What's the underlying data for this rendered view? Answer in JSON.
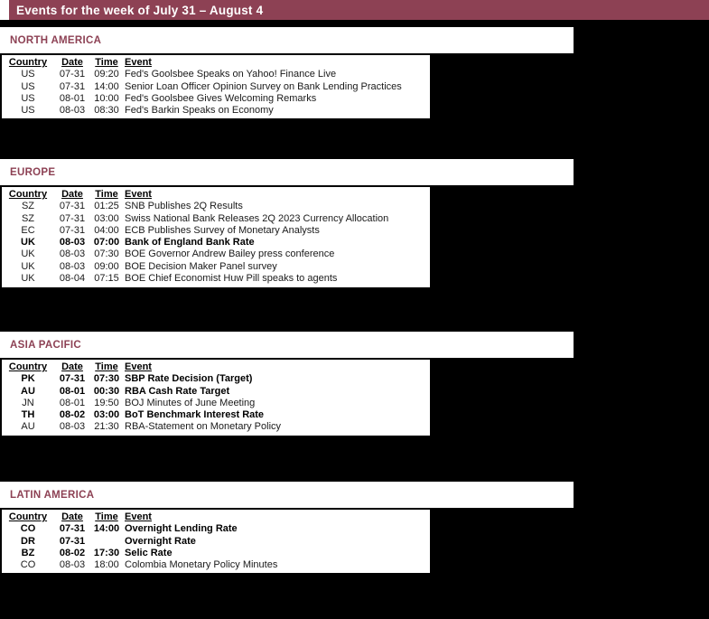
{
  "title_bar": {
    "text": "Events for the week of July 31 – August 4"
  },
  "colors": {
    "accent_maroon": "#8D4154",
    "background": "#000000",
    "panel_white": "#FFFFFF",
    "text": "#1A1A1A"
  },
  "table_headers": {
    "country": "Country",
    "date": "Date",
    "time": "Time",
    "event": "Event"
  },
  "sections": [
    {
      "name": "NORTH AMERICA",
      "rows": [
        {
          "country": "US",
          "date": "07-31",
          "time": "09:20",
          "event": "Fed's Goolsbee Speaks on Yahoo! Finance Live",
          "bold": false
        },
        {
          "country": "US",
          "date": "07-31",
          "time": "14:00",
          "event": "Senior Loan Officer Opinion Survey on Bank Lending Practices",
          "bold": false
        },
        {
          "country": "US",
          "date": "08-01",
          "time": "10:00",
          "event": "Fed's Goolsbee Gives Welcoming Remarks",
          "bold": false
        },
        {
          "country": "US",
          "date": "08-03",
          "time": "08:30",
          "event": "Fed's Barkin Speaks on Economy",
          "bold": false
        }
      ]
    },
    {
      "name": "EUROPE",
      "rows": [
        {
          "country": "SZ",
          "date": "07-31",
          "time": "01:25",
          "event": "SNB Publishes 2Q Results",
          "bold": false
        },
        {
          "country": "SZ",
          "date": "07-31",
          "time": "03:00",
          "event": "Swiss National Bank Releases 2Q 2023 Currency Allocation",
          "bold": false
        },
        {
          "country": "EC",
          "date": "07-31",
          "time": "04:00",
          "event": "ECB Publishes Survey of Monetary Analysts",
          "bold": false
        },
        {
          "country": "UK",
          "date": "08-03",
          "time": "07:00",
          "event": "Bank of England Bank Rate",
          "bold": true
        },
        {
          "country": "UK",
          "date": "08-03",
          "time": "07:30",
          "event": "BOE Governor Andrew Bailey press conference",
          "bold": false
        },
        {
          "country": "UK",
          "date": "08-03",
          "time": "09:00",
          "event": "BOE Decision Maker Panel survey",
          "bold": false
        },
        {
          "country": "UK",
          "date": "08-04",
          "time": "07:15",
          "event": "BOE Chief Economist Huw Pill speaks to agents",
          "bold": false
        }
      ]
    },
    {
      "name": "ASIA PACIFIC",
      "rows": [
        {
          "country": "PK",
          "date": "07-31",
          "time": "07:30",
          "event": "SBP Rate Decision (Target)",
          "bold": true
        },
        {
          "country": "AU",
          "date": "08-01",
          "time": "00:30",
          "event": "RBA Cash Rate Target",
          "bold": true
        },
        {
          "country": "JN",
          "date": "08-01",
          "time": "19:50",
          "event": "BOJ Minutes of June Meeting",
          "bold": false
        },
        {
          "country": "TH",
          "date": "08-02",
          "time": "03:00",
          "event": "BoT Benchmark Interest Rate",
          "bold": true
        },
        {
          "country": "AU",
          "date": "08-03",
          "time": "21:30",
          "event": "RBA-Statement on Monetary Policy",
          "bold": false
        }
      ]
    },
    {
      "name": "LATIN AMERICA",
      "rows": [
        {
          "country": "CO",
          "date": "07-31",
          "time": "14:00",
          "event": "Overnight Lending Rate",
          "bold": true
        },
        {
          "country": "DR",
          "date": "07-31",
          "time": "",
          "event": "Overnight Rate",
          "bold": true
        },
        {
          "country": "BZ",
          "date": "08-02",
          "time": "17:30",
          "event": "Selic Rate",
          "bold": true
        },
        {
          "country": "CO",
          "date": "08-03",
          "time": "18:00",
          "event": "Colombia Monetary Policy Minutes",
          "bold": false
        }
      ]
    }
  ]
}
